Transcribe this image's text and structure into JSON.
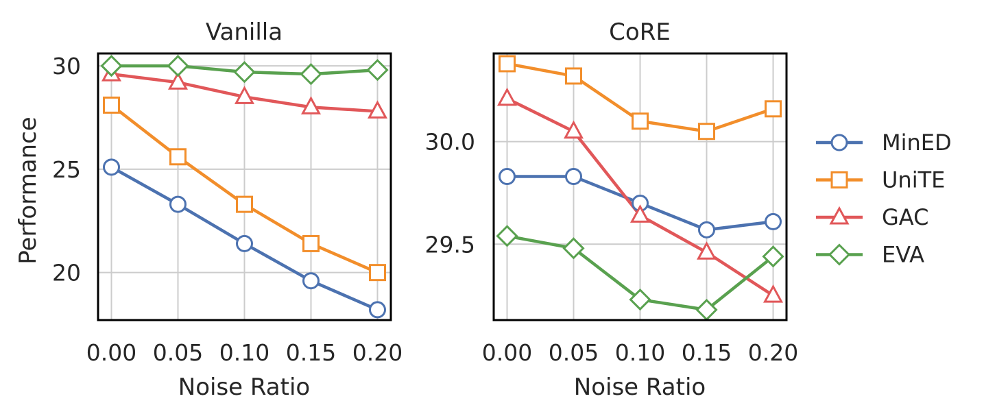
{
  "chart_data": [
    {
      "type": "line",
      "title": "Vanilla",
      "xlabel": "Noise Ratio",
      "ylabel": "Performance",
      "x": [
        0.0,
        0.05,
        0.1,
        0.15,
        0.2
      ],
      "xtick_labels": [
        "0.00",
        "0.05",
        "0.10",
        "0.15",
        "0.20"
      ],
      "yticks": [
        20,
        25,
        30
      ],
      "ytick_labels": [
        "20",
        "25",
        "30"
      ],
      "ylim": [
        17.7,
        30.6
      ],
      "grid": true,
      "series": [
        {
          "name": "MinED",
          "values": [
            25.1,
            23.3,
            21.4,
            19.6,
            18.2
          ]
        },
        {
          "name": "UniTE",
          "values": [
            28.1,
            25.6,
            23.3,
            21.4,
            20.0
          ]
        },
        {
          "name": "GAC",
          "values": [
            29.6,
            29.2,
            28.5,
            28.0,
            27.8
          ]
        },
        {
          "name": "EVA",
          "values": [
            30.0,
            30.0,
            29.7,
            29.6,
            29.8
          ]
        }
      ]
    },
    {
      "type": "line",
      "title": "CoRE",
      "xlabel": "Noise Ratio",
      "ylabel": "",
      "x": [
        0.0,
        0.05,
        0.1,
        0.15,
        0.2
      ],
      "xtick_labels": [
        "0.00",
        "0.05",
        "0.10",
        "0.15",
        "0.20"
      ],
      "yticks": [
        29.5,
        30.0
      ],
      "ytick_labels": [
        "29.5",
        "30.0"
      ],
      "ylim": [
        29.13,
        30.43
      ],
      "grid": true,
      "series": [
        {
          "name": "MinED",
          "values": [
            29.83,
            29.83,
            29.7,
            29.57,
            29.61
          ]
        },
        {
          "name": "UniTE",
          "values": [
            30.38,
            30.32,
            30.1,
            30.05,
            30.16
          ]
        },
        {
          "name": "GAC",
          "values": [
            30.21,
            30.05,
            29.64,
            29.46,
            29.25
          ]
        },
        {
          "name": "EVA",
          "values": [
            29.54,
            29.48,
            29.23,
            29.18,
            29.44
          ]
        }
      ]
    }
  ],
  "legend": {
    "placement": "right",
    "entries": [
      {
        "name": "MinED",
        "color": "#4c72b0",
        "marker": "circle"
      },
      {
        "name": "UniTE",
        "color": "#f28e2b",
        "marker": "square"
      },
      {
        "name": "GAC",
        "color": "#e15759",
        "marker": "triangle"
      },
      {
        "name": "EVA",
        "color": "#59a14f",
        "marker": "diamond"
      }
    ]
  }
}
